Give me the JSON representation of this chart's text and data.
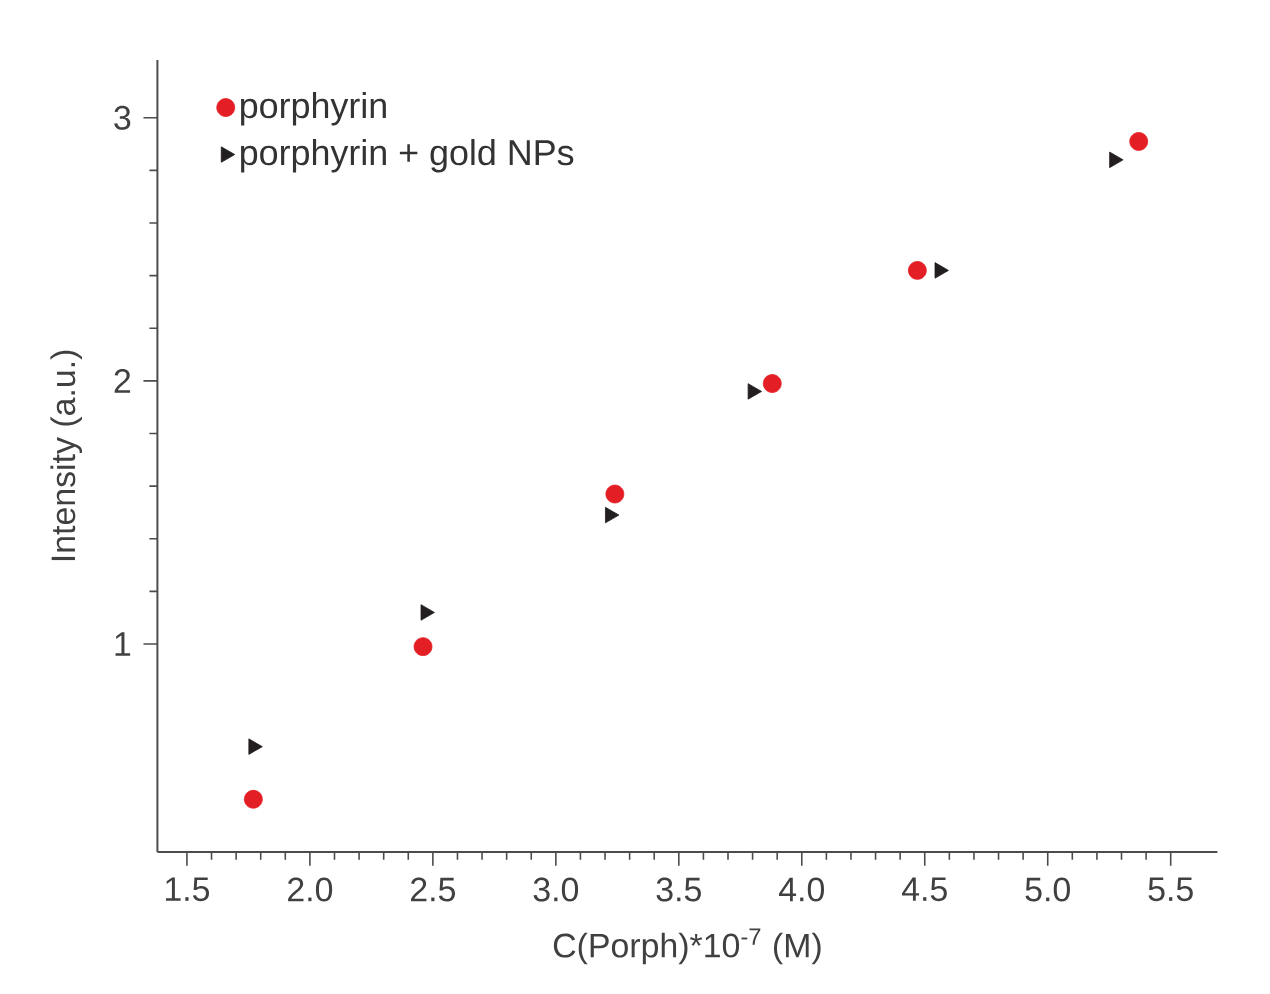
{
  "chart_data": {
    "type": "scatter",
    "xlabel": "C(Porph)*10$^{-7}$ (M)",
    "ylabel": "Intensity (a.u.)",
    "series": [
      {
        "name": "porphyrin",
        "color": "#e31e24",
        "marker": "circle",
        "x": [
          1.77,
          2.46,
          3.24,
          3.88,
          4.47,
          5.37
        ],
        "values": [
          0.41,
          0.99,
          1.57,
          1.99,
          2.42,
          2.91
        ]
      },
      {
        "name": "porphyrin + gold NPs",
        "color": "#231f20",
        "marker": "triangle",
        "x": [
          1.77,
          2.47,
          3.22,
          3.8,
          4.56,
          5.27
        ],
        "values": [
          0.61,
          1.12,
          1.49,
          1.96,
          2.42,
          2.84
        ]
      }
    ],
    "xlim": [
      1.38,
      5.69
    ],
    "ylim": [
      0.21,
      3.22
    ],
    "xticks": [
      1.5,
      {
        "value": 2,
        "label": "2.0"
      },
      2.5,
      {
        "value": 3,
        "label": "3.0"
      },
      3.5,
      {
        "value": 4,
        "label": "4.0"
      },
      4.5,
      {
        "value": 5,
        "label": "5.0"
      },
      5.5
    ],
    "yticks": [
      1,
      2,
      3
    ],
    "grid": false,
    "legend": "top left"
  }
}
